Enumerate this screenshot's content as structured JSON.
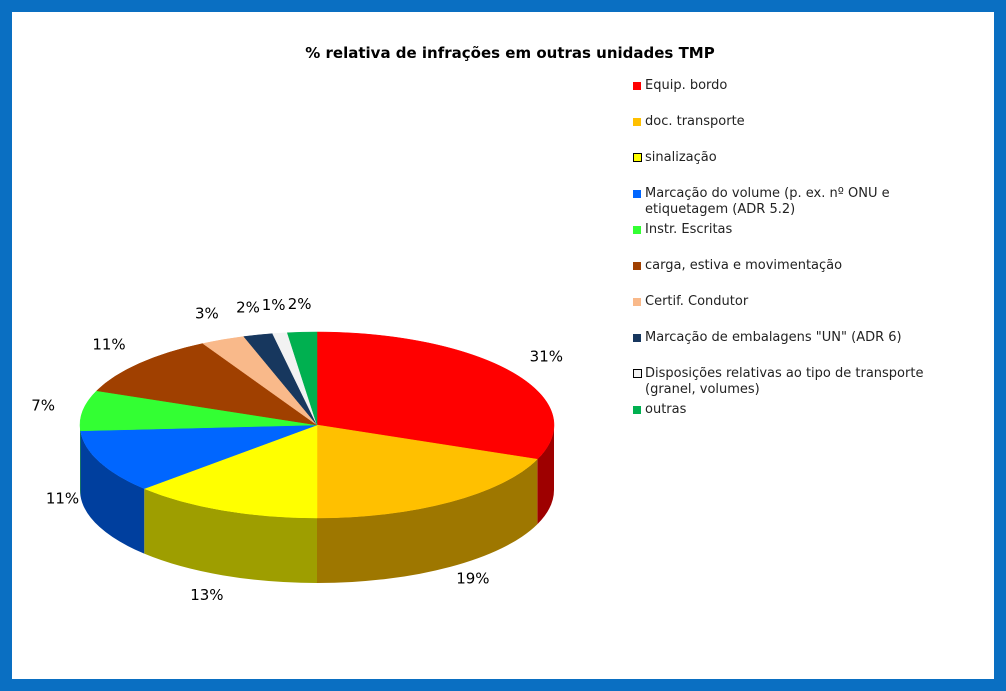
{
  "chart_data": {
    "type": "pie",
    "title": "% relativa de infrações  em outras unidades TMP",
    "categories": [
      "Equip. bordo",
      "doc. transporte",
      "sinalização",
      "Marcação do volume (p. ex. nº ONU e etiquetagem (ADR 5.2)",
      "Instr. Escritas",
      "carga, estiva e movimentação",
      "Certif. Condutor",
      "Marcação de embalagens \"UN\" (ADR 6)",
      "Disposições relativas ao tipo de transporte (granel, volumes)",
      "outras"
    ],
    "values": [
      31,
      19,
      13,
      11,
      7,
      11,
      3,
      2,
      1,
      2
    ],
    "value_labels": [
      "31%",
      "19%",
      "13%",
      "11%",
      "7%",
      "11%",
      "3%",
      "2%",
      "1%",
      "2%"
    ],
    "colors": [
      "#ff0000",
      "#ffc000",
      "#ffff00",
      "#0066ff",
      "#33ff33",
      "#a04000",
      "#f9b98a",
      "#17375e",
      "#f2f2f2",
      "#00b050"
    ],
    "legend": "right"
  }
}
